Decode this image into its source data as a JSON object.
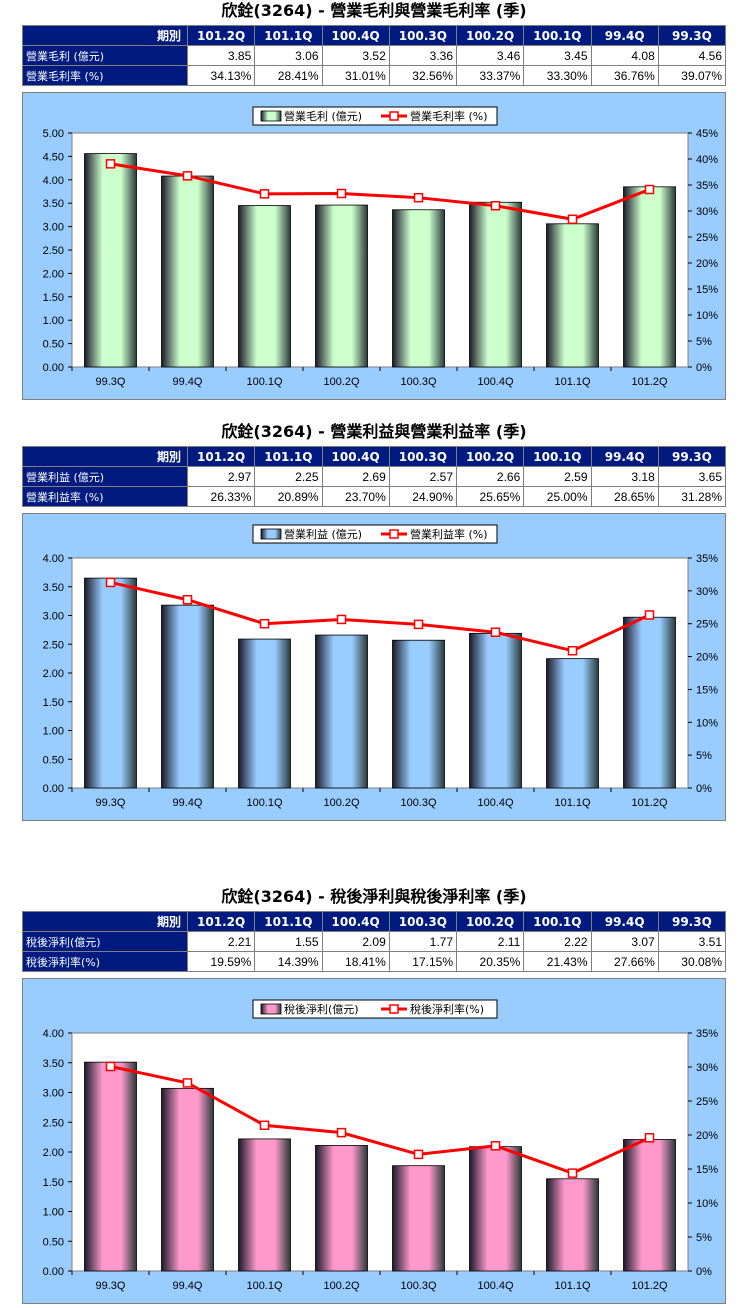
{
  "periods": [
    "101.2Q",
    "101.1Q",
    "100.4Q",
    "100.3Q",
    "100.2Q",
    "100.1Q",
    "99.4Q",
    "99.3Q"
  ],
  "period_header": "期別",
  "sections": [
    {
      "title": "欣銓(3264) - 營業毛利與營業毛利率 (季)",
      "rows": [
        {
          "label": "營業毛利 (億元)",
          "values": [
            "3.85",
            "3.06",
            "3.52",
            "3.36",
            "3.46",
            "3.45",
            "4.08",
            "4.56"
          ]
        },
        {
          "label": "營業毛利率 (%)",
          "values": [
            "34.13%",
            "28.41%",
            "31.01%",
            "32.56%",
            "33.37%",
            "33.30%",
            "36.76%",
            "39.07%"
          ]
        }
      ]
    },
    {
      "title": "欣銓(3264) - 營業利益與營業利益率 (季)",
      "rows": [
        {
          "label": "營業利益 (億元)",
          "values": [
            "2.97",
            "2.25",
            "2.69",
            "2.57",
            "2.66",
            "2.59",
            "3.18",
            "3.65"
          ]
        },
        {
          "label": "營業利益率 (%)",
          "values": [
            "26.33%",
            "20.89%",
            "23.70%",
            "24.90%",
            "25.65%",
            "25.00%",
            "28.65%",
            "31.28%"
          ]
        }
      ]
    },
    {
      "title": "欣銓(3264) - 稅後淨利與稅後淨利率 (季)",
      "rows": [
        {
          "label": "稅後淨利(億元)",
          "values": [
            "2.21",
            "1.55",
            "2.09",
            "1.77",
            "2.11",
            "2.22",
            "3.07",
            "3.51"
          ]
        },
        {
          "label": "稅後淨利率(%)",
          "values": [
            "19.59%",
            "14.39%",
            "18.41%",
            "17.15%",
            "20.35%",
            "21.43%",
            "27.66%",
            "30.08%"
          ]
        }
      ]
    }
  ],
  "colors": {
    "header_bg": "#001a80",
    "chart_bg": "#99ccff",
    "line": "#ff0000",
    "bar1": "#ccffcc",
    "bar2": "#99ccff",
    "bar3": "#ff99cc"
  },
  "chart_data": [
    {
      "type": "bar",
      "categories": [
        "99.3Q",
        "99.4Q",
        "100.1Q",
        "100.2Q",
        "100.3Q",
        "100.4Q",
        "101.1Q",
        "101.2Q"
      ],
      "series": [
        {
          "name": "營業毛利 (億元)",
          "type": "bar",
          "axis": "left",
          "values": [
            4.56,
            4.08,
            3.45,
            3.46,
            3.36,
            3.52,
            3.06,
            3.85
          ]
        },
        {
          "name": "營業毛利率 (%)",
          "type": "line",
          "axis": "right",
          "values": [
            39.07,
            36.76,
            33.3,
            33.37,
            32.56,
            31.01,
            28.41,
            34.13
          ]
        }
      ],
      "ylim": [
        0,
        5
      ],
      "yticks": [
        "0.00",
        "0.50",
        "1.00",
        "1.50",
        "2.00",
        "2.50",
        "3.00",
        "3.50",
        "4.00",
        "4.50",
        "5.00"
      ],
      "y2lim": [
        0,
        45
      ],
      "y2ticks": [
        "0%",
        "5%",
        "10%",
        "15%",
        "20%",
        "25%",
        "30%",
        "35%",
        "40%",
        "45%"
      ],
      "legend": "top-center",
      "grid": false
    },
    {
      "type": "bar",
      "categories": [
        "99.3Q",
        "99.4Q",
        "100.1Q",
        "100.2Q",
        "100.3Q",
        "100.4Q",
        "101.1Q",
        "101.2Q"
      ],
      "series": [
        {
          "name": "營業利益 (億元)",
          "type": "bar",
          "axis": "left",
          "values": [
            3.65,
            3.18,
            2.59,
            2.66,
            2.57,
            2.69,
            2.25,
            2.97
          ]
        },
        {
          "name": "營業利益率 (%)",
          "type": "line",
          "axis": "right",
          "values": [
            31.28,
            28.65,
            25.0,
            25.65,
            24.9,
            23.7,
            20.89,
            26.33
          ]
        }
      ],
      "ylim": [
        0,
        4
      ],
      "yticks": [
        "0.00",
        "0.50",
        "1.00",
        "1.50",
        "2.00",
        "2.50",
        "3.00",
        "3.50",
        "4.00"
      ],
      "y2lim": [
        0,
        35
      ],
      "y2ticks": [
        "0%",
        "5%",
        "10%",
        "15%",
        "20%",
        "25%",
        "30%",
        "35%"
      ],
      "legend": "top-center",
      "grid": false
    },
    {
      "type": "bar",
      "categories": [
        "99.3Q",
        "99.4Q",
        "100.1Q",
        "100.2Q",
        "100.3Q",
        "100.4Q",
        "101.1Q",
        "101.2Q"
      ],
      "series": [
        {
          "name": "稅後淨利(億元)",
          "type": "bar",
          "axis": "left",
          "values": [
            3.51,
            3.07,
            2.22,
            2.11,
            1.77,
            2.09,
            1.55,
            2.21
          ]
        },
        {
          "name": "稅後淨利率(%)",
          "type": "line",
          "axis": "right",
          "values": [
            30.08,
            27.66,
            21.43,
            20.35,
            17.15,
            18.41,
            14.39,
            19.59
          ]
        }
      ],
      "ylim": [
        0,
        4
      ],
      "yticks": [
        "0.00",
        "0.50",
        "1.00",
        "1.50",
        "2.00",
        "2.50",
        "3.00",
        "3.50",
        "4.00"
      ],
      "y2lim": [
        0,
        35
      ],
      "y2ticks": [
        "0%",
        "5%",
        "10%",
        "15%",
        "20%",
        "25%",
        "30%",
        "35%"
      ],
      "legend": "top-center",
      "grid": false
    }
  ]
}
